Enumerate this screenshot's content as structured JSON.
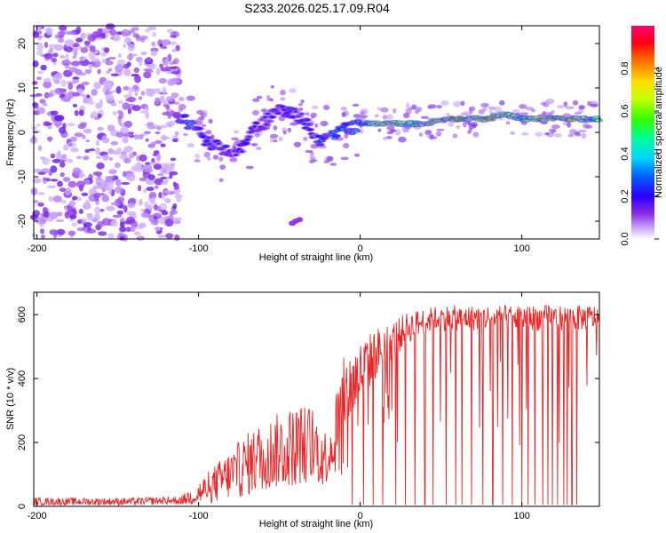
{
  "title": "S233.2026.025.17.09.R04",
  "chart_data": [
    {
      "type": "heatmap",
      "title": "S233.2026.025.17.09.R04",
      "xlabel": "Height of straight line (km)",
      "ylabel": "Frequency (Hz)",
      "xlim": [
        -202,
        148
      ],
      "ylim": [
        -24,
        24
      ],
      "xticks": [
        -200,
        -100,
        0,
        100
      ],
      "yticks": [
        -20,
        -10,
        0,
        10,
        20
      ],
      "colorbar": {
        "label": "Normalized spectral amplitude",
        "range": [
          0,
          1
        ],
        "ticks": [
          0.0,
          0.2,
          0.4,
          0.6,
          0.8
        ],
        "tick_labels": [
          "0.0",
          "0.2",
          "0.4",
          "0.6",
          "0.8"
        ],
        "colormap": [
          "#ffffff",
          "#b38cff",
          "#6a00ff",
          "#0000ff",
          "#00c8ff",
          "#00ff80",
          "#80ff00",
          "#ffff00",
          "#ff8000",
          "#ff0000",
          "#ff0080"
        ]
      },
      "noise_region_x": [
        -202,
        -112
      ],
      "ridge": {
        "x": [
          -112,
          -105,
          -100,
          -95,
          -90,
          -85,
          -80,
          -75,
          -70,
          -65,
          -60,
          -55,
          -50,
          -45,
          -40,
          -35,
          -30,
          -25,
          -20,
          -15,
          -10,
          -5,
          0,
          5,
          10,
          20,
          30,
          40,
          50,
          60,
          70,
          80,
          85,
          90,
          100,
          110,
          120,
          130,
          140,
          148
        ],
        "y": [
          3,
          2,
          0,
          -2,
          -3,
          -4,
          -5,
          -4,
          -2,
          1,
          2,
          4,
          5,
          5,
          4,
          3,
          0,
          -2,
          -1,
          0,
          1,
          1,
          2,
          2,
          2,
          2,
          2,
          2,
          3,
          3,
          3,
          3,
          4,
          4,
          3,
          3,
          3,
          3,
          3,
          3
        ],
        "amplitude": [
          0.35,
          0.3,
          0.25,
          0.2,
          0.2,
          0.25,
          0.2,
          0.2,
          0.25,
          0.2,
          0.15,
          0.2,
          0.25,
          0.25,
          0.2,
          0.2,
          0.25,
          0.3,
          0.3,
          0.35,
          0.3,
          0.3,
          0.45,
          0.55,
          0.75,
          0.85,
          0.6,
          0.7,
          0.9,
          0.95,
          0.75,
          0.9,
          0.85,
          0.7,
          0.6,
          0.8,
          0.85,
          0.9,
          0.65,
          0.6
        ]
      },
      "isolated_blob": {
        "x": -40,
        "y": -20
      }
    },
    {
      "type": "line",
      "xlabel": "Height of straight line (km)",
      "ylabel": "SNR (10 * v/v)",
      "xlim": [
        -202,
        148
      ],
      "ylim": [
        0,
        670
      ],
      "xticks": [
        -200,
        -100,
        0,
        100
      ],
      "yticks": [
        0,
        200,
        400,
        600
      ],
      "color": "#ee2222",
      "series_envelope": {
        "x": [
          -202,
          -180,
          -160,
          -140,
          -120,
          -110,
          -100,
          -90,
          -80,
          -70,
          -60,
          -50,
          -40,
          -30,
          -20,
          -15,
          -10,
          -5,
          0,
          5,
          10,
          20,
          30,
          40,
          50,
          60,
          70,
          80,
          90,
          100,
          110,
          120,
          130,
          140,
          148
        ],
        "base": [
          15,
          15,
          15,
          15,
          18,
          20,
          40,
          70,
          100,
          130,
          160,
          175,
          190,
          200,
          150,
          250,
          350,
          380,
          420,
          450,
          480,
          520,
          560,
          580,
          590,
          590,
          590,
          590,
          590,
          590,
          590,
          590,
          590,
          590,
          590
        ],
        "noise": [
          12,
          12,
          12,
          12,
          12,
          15,
          40,
          60,
          80,
          100,
          110,
          120,
          130,
          120,
          80,
          120,
          120,
          110,
          100,
          90,
          80,
          60,
          50,
          40,
          40,
          40,
          40,
          40,
          40,
          40,
          40,
          40,
          40,
          40,
          40
        ]
      },
      "dropouts_x": [
        -5,
        2,
        8,
        14,
        22,
        28,
        34,
        40,
        45,
        53,
        59,
        63,
        69,
        76,
        82,
        88,
        94,
        100,
        104,
        108,
        113,
        116,
        119,
        122,
        126,
        128,
        131,
        134
      ]
    }
  ]
}
